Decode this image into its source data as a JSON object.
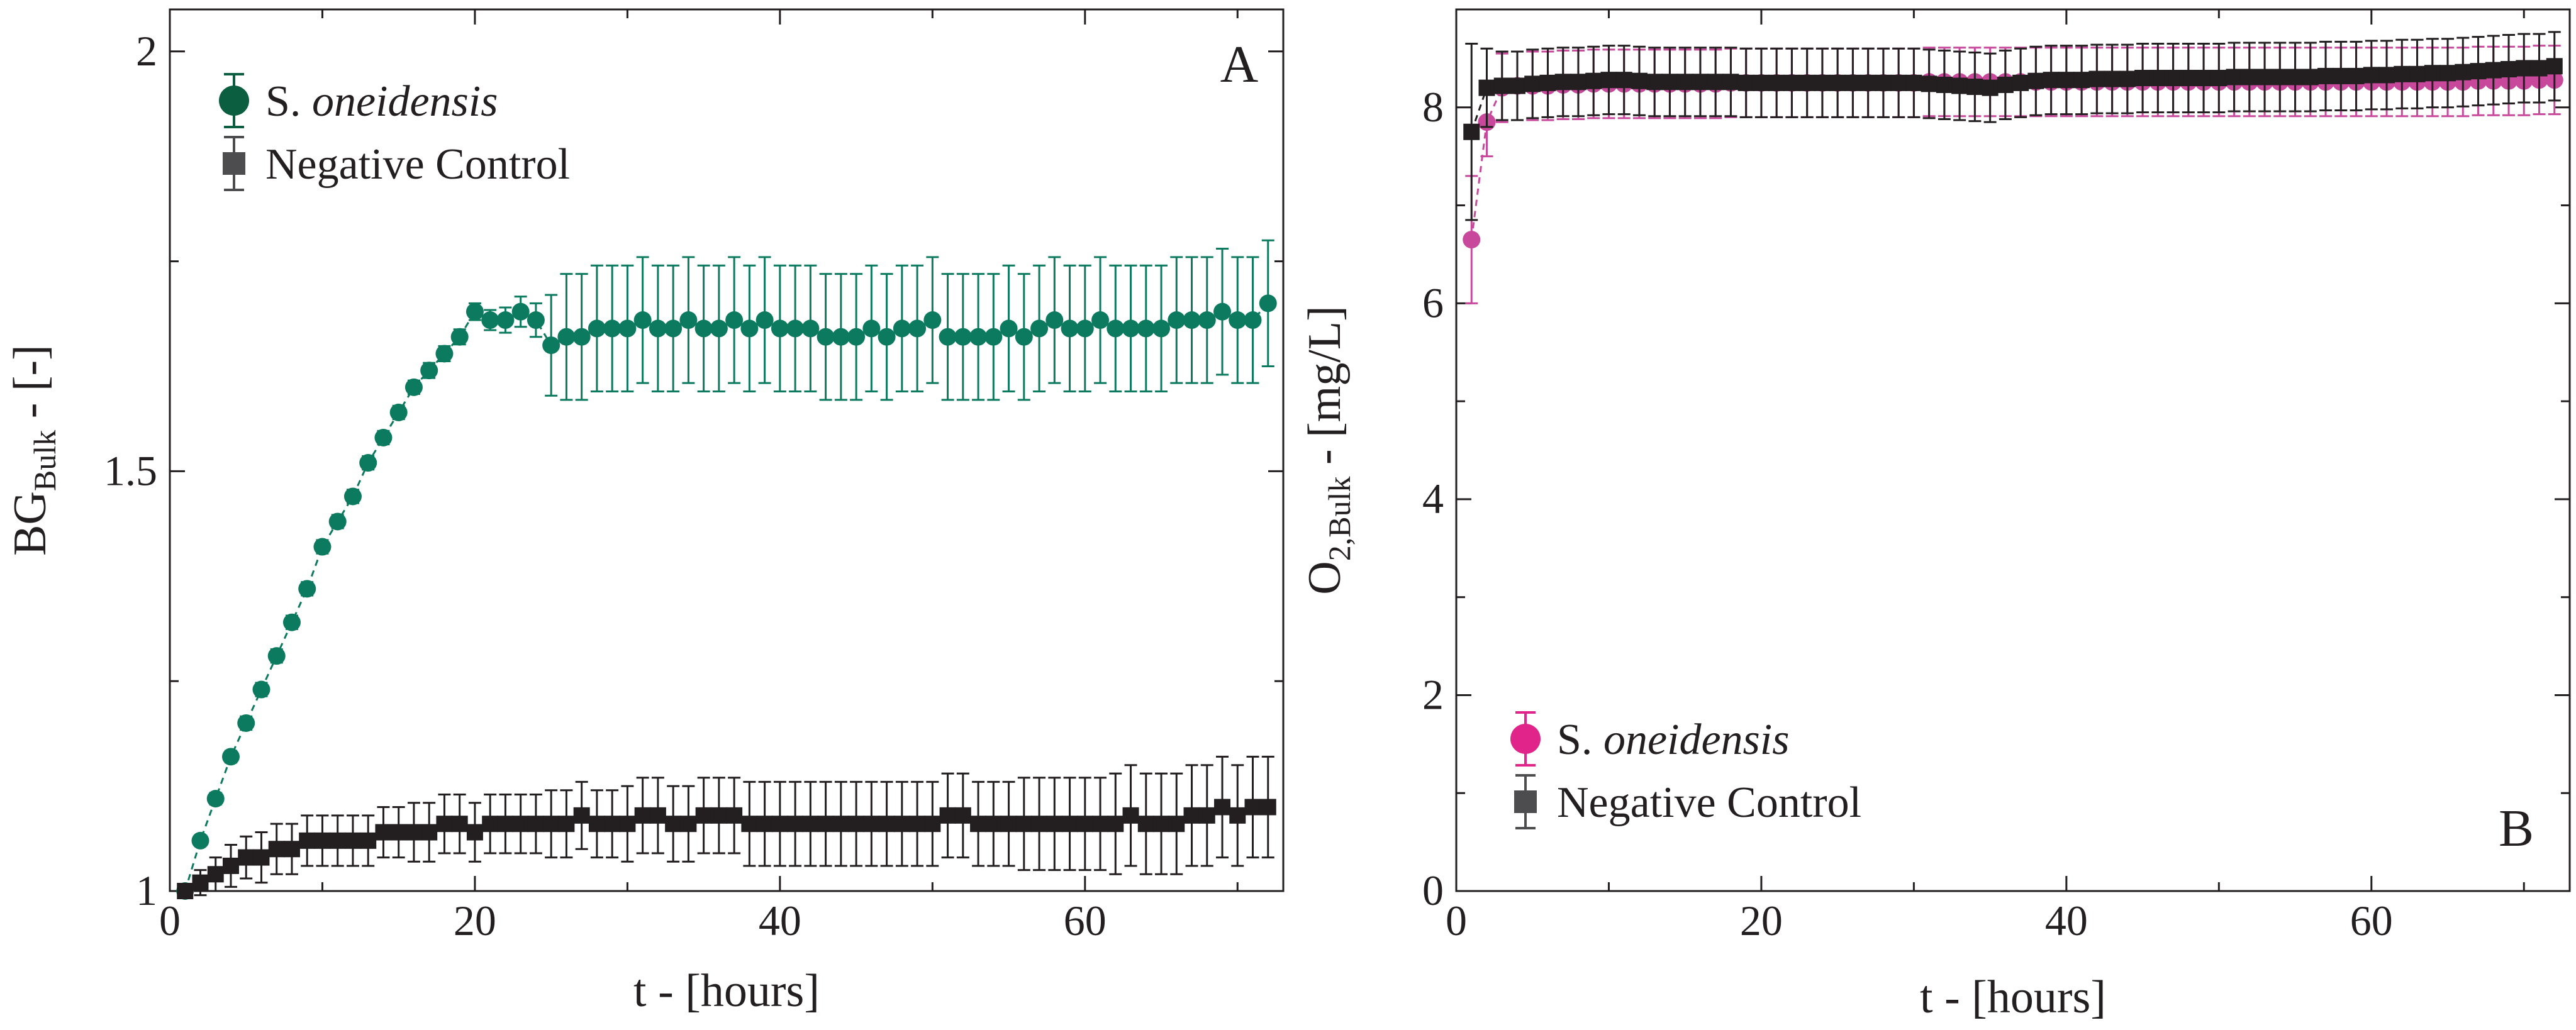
{
  "figure": {
    "panels": [
      "panel-a",
      "panel-b"
    ]
  },
  "chart_data": [
    {
      "id": "panel-a",
      "type": "scatter",
      "panel_letter": "A",
      "title": "",
      "xlabel": "t - [hours]",
      "ylabel_main": "BG",
      "ylabel_sub": "Bulk",
      "ylabel_suffix": " - [-]",
      "xlim": [
        0,
        73
      ],
      "ylim": [
        1,
        2.05
      ],
      "xticks": [
        0,
        20,
        40,
        60
      ],
      "xtick_labels": [
        "0",
        "20",
        "40",
        "60"
      ],
      "xticks_minor": [
        10,
        30,
        50,
        70
      ],
      "yticks": [
        1,
        1.5,
        2
      ],
      "ytick_labels": [
        "1",
        "1.5",
        "2"
      ],
      "yticks_minor": [
        1.25,
        1.75
      ],
      "grid": false,
      "legend_position": "top-left",
      "series": [
        {
          "name": "S. oneidensis",
          "name_plain": "S. ",
          "name_italic": "oneidensis",
          "color": "#0c7a5e",
          "legend_color": "#0b5e3f",
          "marker": "circle",
          "x": [
            1,
            2,
            3,
            4,
            5,
            6,
            7,
            8,
            9,
            10,
            11,
            12,
            13,
            14,
            15,
            16,
            17,
            18,
            19,
            20,
            21,
            22,
            23,
            24,
            25,
            26,
            27,
            28,
            29,
            30,
            31,
            32,
            33,
            34,
            35,
            36,
            37,
            38,
            39,
            40,
            41,
            42,
            43,
            44,
            45,
            46,
            47,
            48,
            49,
            50,
            51,
            52,
            53,
            54,
            55,
            56,
            57,
            58,
            59,
            60,
            61,
            62,
            63,
            64,
            65,
            66,
            67,
            68,
            69,
            70,
            71,
            72
          ],
          "y": [
            1.0,
            1.06,
            1.11,
            1.16,
            1.2,
            1.24,
            1.28,
            1.32,
            1.36,
            1.41,
            1.44,
            1.47,
            1.51,
            1.54,
            1.57,
            1.6,
            1.62,
            1.64,
            1.66,
            1.69,
            1.68,
            1.68,
            1.69,
            1.68,
            1.65,
            1.66,
            1.66,
            1.67,
            1.67,
            1.67,
            1.68,
            1.67,
            1.67,
            1.68,
            1.67,
            1.67,
            1.68,
            1.67,
            1.68,
            1.67,
            1.67,
            1.67,
            1.66,
            1.66,
            1.66,
            1.67,
            1.66,
            1.67,
            1.67,
            1.68,
            1.66,
            1.66,
            1.66,
            1.66,
            1.67,
            1.66,
            1.67,
            1.68,
            1.67,
            1.67,
            1.68,
            1.67,
            1.67,
            1.67,
            1.67,
            1.68,
            1.68,
            1.68,
            1.69,
            1.68,
            1.68,
            1.7
          ],
          "err": [
            0.005,
            0.006,
            0.007,
            0.007,
            0.008,
            0.008,
            0.008,
            0.008,
            0.008,
            0.008,
            0.008,
            0.008,
            0.008,
            0.008,
            0.008,
            0.008,
            0.009,
            0.009,
            0.009,
            0.01,
            0.012,
            0.015,
            0.018,
            0.02,
            0.06,
            0.075,
            0.075,
            0.075,
            0.075,
            0.075,
            0.075,
            0.075,
            0.075,
            0.075,
            0.075,
            0.075,
            0.075,
            0.075,
            0.075,
            0.075,
            0.075,
            0.075,
            0.075,
            0.075,
            0.075,
            0.075,
            0.075,
            0.075,
            0.075,
            0.075,
            0.075,
            0.075,
            0.075,
            0.075,
            0.075,
            0.075,
            0.075,
            0.075,
            0.075,
            0.075,
            0.075,
            0.075,
            0.075,
            0.075,
            0.075,
            0.075,
            0.075,
            0.075,
            0.075,
            0.075,
            0.075,
            0.075
          ]
        },
        {
          "name": "Negative Control",
          "color": "#231f20",
          "legend_color": "#4d4d4f",
          "marker": "square",
          "x": [
            1,
            2,
            3,
            4,
            5,
            6,
            7,
            8,
            9,
            10,
            11,
            12,
            13,
            14,
            15,
            16,
            17,
            18,
            19,
            20,
            21,
            22,
            23,
            24,
            25,
            26,
            27,
            28,
            29,
            30,
            31,
            32,
            33,
            34,
            35,
            36,
            37,
            38,
            39,
            40,
            41,
            42,
            43,
            44,
            45,
            46,
            47,
            48,
            49,
            50,
            51,
            52,
            53,
            54,
            55,
            56,
            57,
            58,
            59,
            60,
            61,
            62,
            63,
            64,
            65,
            66,
            67,
            68,
            69,
            70,
            71,
            72
          ],
          "y": [
            1.0,
            1.01,
            1.02,
            1.03,
            1.04,
            1.04,
            1.05,
            1.05,
            1.06,
            1.06,
            1.06,
            1.06,
            1.06,
            1.07,
            1.07,
            1.07,
            1.07,
            1.08,
            1.08,
            1.07,
            1.08,
            1.08,
            1.08,
            1.08,
            1.08,
            1.08,
            1.09,
            1.08,
            1.08,
            1.08,
            1.09,
            1.09,
            1.08,
            1.08,
            1.09,
            1.09,
            1.09,
            1.08,
            1.08,
            1.08,
            1.08,
            1.08,
            1.08,
            1.08,
            1.08,
            1.08,
            1.08,
            1.08,
            1.08,
            1.08,
            1.09,
            1.09,
            1.08,
            1.08,
            1.08,
            1.08,
            1.08,
            1.08,
            1.08,
            1.08,
            1.08,
            1.08,
            1.09,
            1.08,
            1.08,
            1.08,
            1.09,
            1.09,
            1.1,
            1.09,
            1.1,
            1.1
          ],
          "err": [
            0.005,
            0.015,
            0.02,
            0.025,
            0.025,
            0.03,
            0.03,
            0.03,
            0.03,
            0.03,
            0.03,
            0.03,
            0.03,
            0.03,
            0.03,
            0.035,
            0.035,
            0.035,
            0.035,
            0.035,
            0.035,
            0.035,
            0.035,
            0.035,
            0.04,
            0.04,
            0.04,
            0.04,
            0.04,
            0.045,
            0.045,
            0.045,
            0.045,
            0.045,
            0.045,
            0.045,
            0.045,
            0.05,
            0.05,
            0.05,
            0.05,
            0.05,
            0.05,
            0.05,
            0.05,
            0.05,
            0.05,
            0.05,
            0.05,
            0.05,
            0.05,
            0.05,
            0.05,
            0.05,
            0.05,
            0.055,
            0.055,
            0.055,
            0.055,
            0.055,
            0.055,
            0.06,
            0.06,
            0.06,
            0.06,
            0.06,
            0.06,
            0.06,
            0.06,
            0.06,
            0.06,
            0.06
          ]
        }
      ]
    },
    {
      "id": "panel-b",
      "type": "scatter",
      "panel_letter": "B",
      "title": "",
      "xlabel": "t - [hours]",
      "ylabel_main": "O",
      "ylabel_sub": "2,Bulk",
      "ylabel_suffix": " - [mg/L]",
      "xlim": [
        0,
        73
      ],
      "ylim": [
        0,
        9
      ],
      "xticks": [
        0,
        20,
        40,
        60
      ],
      "xtick_labels": [
        "0",
        "20",
        "40",
        "60"
      ],
      "xticks_minor": [
        10,
        30,
        50,
        70
      ],
      "yticks": [
        0,
        2,
        4,
        6,
        8
      ],
      "ytick_labels": [
        "0",
        "2",
        "4",
        "6",
        "8"
      ],
      "yticks_minor": [
        1,
        3,
        5,
        7
      ],
      "grid": false,
      "legend_position": "bottom-left",
      "series": [
        {
          "name": "S. oneidensis",
          "name_plain": "S. ",
          "name_italic": "oneidensis",
          "color": "#c8489b",
          "legend_color": "#e0248a",
          "marker": "circle",
          "x": [
            1,
            2,
            3,
            4,
            5,
            6,
            7,
            8,
            9,
            10,
            11,
            12,
            13,
            14,
            15,
            16,
            17,
            18,
            19,
            20,
            21,
            22,
            23,
            24,
            25,
            26,
            27,
            28,
            29,
            30,
            31,
            32,
            33,
            34,
            35,
            36,
            37,
            38,
            39,
            40,
            41,
            42,
            43,
            44,
            45,
            46,
            47,
            48,
            49,
            50,
            51,
            52,
            53,
            54,
            55,
            56,
            57,
            58,
            59,
            60,
            61,
            62,
            63,
            64,
            65,
            66,
            67,
            68,
            69,
            70,
            71,
            72
          ],
          "y": [
            6.65,
            7.85,
            8.2,
            8.22,
            8.22,
            8.22,
            8.23,
            8.23,
            8.24,
            8.24,
            8.24,
            8.24,
            8.24,
            8.24,
            8.24,
            8.24,
            8.24,
            8.25,
            8.25,
            8.25,
            8.25,
            8.25,
            8.25,
            8.25,
            8.25,
            8.25,
            8.25,
            8.25,
            8.25,
            8.25,
            8.26,
            8.26,
            8.26,
            8.26,
            8.26,
            8.26,
            8.26,
            8.26,
            8.26,
            8.26,
            8.26,
            8.26,
            8.26,
            8.26,
            8.26,
            8.26,
            8.26,
            8.26,
            8.26,
            8.26,
            8.26,
            8.26,
            8.26,
            8.26,
            8.26,
            8.26,
            8.26,
            8.26,
            8.26,
            8.26,
            8.26,
            8.26,
            8.26,
            8.26,
            8.26,
            8.26,
            8.27,
            8.27,
            8.27,
            8.27,
            8.28,
            8.28
          ],
          "err": [
            0.65,
            0.35,
            0.35,
            0.35,
            0.35,
            0.35,
            0.35,
            0.35,
            0.35,
            0.35,
            0.35,
            0.35,
            0.35,
            0.35,
            0.35,
            0.35,
            0.35,
            0.35,
            0.35,
            0.35,
            0.35,
            0.35,
            0.35,
            0.35,
            0.35,
            0.35,
            0.35,
            0.35,
            0.35,
            0.35,
            0.35,
            0.35,
            0.35,
            0.35,
            0.35,
            0.35,
            0.35,
            0.35,
            0.35,
            0.35,
            0.35,
            0.35,
            0.35,
            0.35,
            0.35,
            0.35,
            0.35,
            0.35,
            0.35,
            0.35,
            0.35,
            0.35,
            0.35,
            0.35,
            0.35,
            0.35,
            0.35,
            0.35,
            0.35,
            0.35,
            0.35,
            0.35,
            0.35,
            0.35,
            0.35,
            0.35,
            0.35,
            0.35,
            0.35,
            0.35,
            0.35,
            0.35
          ]
        },
        {
          "name": "Negative Control",
          "color": "#231f20",
          "legend_color": "#4d4d4f",
          "marker": "square",
          "x": [
            1,
            2,
            3,
            4,
            5,
            6,
            7,
            8,
            9,
            10,
            11,
            12,
            13,
            14,
            15,
            16,
            17,
            18,
            19,
            20,
            21,
            22,
            23,
            24,
            25,
            26,
            27,
            28,
            29,
            30,
            31,
            32,
            33,
            34,
            35,
            36,
            37,
            38,
            39,
            40,
            41,
            42,
            43,
            44,
            45,
            46,
            47,
            48,
            49,
            50,
            51,
            52,
            53,
            54,
            55,
            56,
            57,
            58,
            59,
            60,
            61,
            62,
            63,
            64,
            65,
            66,
            67,
            68,
            69,
            70,
            71,
            72
          ],
          "y": [
            7.75,
            8.2,
            8.22,
            8.22,
            8.24,
            8.25,
            8.26,
            8.26,
            8.27,
            8.28,
            8.28,
            8.27,
            8.26,
            8.26,
            8.26,
            8.26,
            8.26,
            8.26,
            8.25,
            8.25,
            8.25,
            8.25,
            8.25,
            8.25,
            8.25,
            8.25,
            8.25,
            8.25,
            8.25,
            8.25,
            8.24,
            8.23,
            8.22,
            8.21,
            8.2,
            8.23,
            8.25,
            8.27,
            8.28,
            8.28,
            8.28,
            8.29,
            8.29,
            8.29,
            8.3,
            8.3,
            8.3,
            8.3,
            8.3,
            8.3,
            8.31,
            8.31,
            8.31,
            8.31,
            8.31,
            8.31,
            8.32,
            8.32,
            8.32,
            8.33,
            8.33,
            8.34,
            8.34,
            8.35,
            8.35,
            8.36,
            8.37,
            8.38,
            8.39,
            8.4,
            8.4,
            8.42
          ],
          "err": [
            0.9,
            0.4,
            0.35,
            0.35,
            0.35,
            0.35,
            0.35,
            0.35,
            0.35,
            0.35,
            0.35,
            0.35,
            0.35,
            0.35,
            0.35,
            0.35,
            0.35,
            0.35,
            0.35,
            0.35,
            0.35,
            0.35,
            0.35,
            0.35,
            0.35,
            0.35,
            0.35,
            0.35,
            0.35,
            0.35,
            0.35,
            0.35,
            0.35,
            0.35,
            0.35,
            0.35,
            0.35,
            0.35,
            0.35,
            0.35,
            0.35,
            0.35,
            0.35,
            0.35,
            0.35,
            0.35,
            0.35,
            0.35,
            0.35,
            0.35,
            0.35,
            0.35,
            0.35,
            0.35,
            0.35,
            0.35,
            0.35,
            0.35,
            0.35,
            0.35,
            0.35,
            0.35,
            0.35,
            0.35,
            0.35,
            0.35,
            0.35,
            0.35,
            0.35,
            0.35,
            0.35,
            0.35
          ]
        }
      ]
    }
  ]
}
